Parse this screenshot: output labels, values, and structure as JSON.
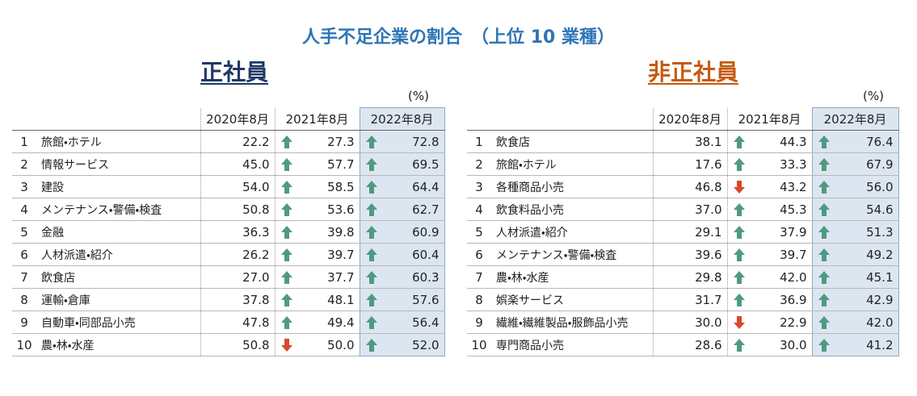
{
  "title": "人手不足企業の割合　（上位 10 業種）",
  "tables": [
    {
      "heading": "正社員",
      "unit": "(%)",
      "columns": [
        "2020年8月",
        "2021年8月",
        "2022年8月"
      ],
      "rows": [
        [
          "1",
          "旅館・ホテル",
          "22.2",
          "27.3",
          "72.8"
        ],
        [
          "2",
          "情報サービス",
          "45.0",
          "57.7",
          "69.5"
        ],
        [
          "3",
          "建設",
          "54.0",
          "58.5",
          "64.4"
        ],
        [
          "4",
          "メンテナンス・警備・検査",
          "50.8",
          "53.6",
          "62.7"
        ],
        [
          "5",
          "金融",
          "36.3",
          "39.8",
          "60.9"
        ],
        [
          "6",
          "人材派遣・紹介",
          "26.2",
          "39.7",
          "60.4"
        ],
        [
          "7",
          "飲食店",
          "27.0",
          "37.7",
          "60.3"
        ],
        [
          "8",
          "運輸・倉庫",
          "37.8",
          "48.1",
          "57.6"
        ],
        [
          "9",
          "自動車・同部品小売",
          "47.8",
          "49.4",
          "56.4"
        ],
        [
          "10",
          "農・林・水産",
          "50.8",
          "50.0",
          "52.0"
        ]
      ]
    },
    {
      "heading": "非正社員",
      "unit": "(%)",
      "columns": [
        "2020年8月",
        "2021年8月",
        "2022年8月"
      ],
      "rows": [
        [
          "1",
          "飲食店",
          "38.1",
          "44.3",
          "76.4"
        ],
        [
          "2",
          "旅館・ホテル",
          "17.6",
          "33.3",
          "67.9"
        ],
        [
          "3",
          "各種商品小売",
          "46.8",
          "43.2",
          "56.0"
        ],
        [
          "4",
          "飲食料品小売",
          "37.0",
          "45.3",
          "54.6"
        ],
        [
          "5",
          "人材派遣・紹介",
          "29.1",
          "37.9",
          "51.3"
        ],
        [
          "6",
          "メンテナンス・警備・検査",
          "39.6",
          "39.7",
          "49.2"
        ],
        [
          "7",
          "農・林・水産",
          "29.8",
          "42.0",
          "45.1"
        ],
        [
          "8",
          "娯楽サービス",
          "31.7",
          "36.9",
          "42.9"
        ],
        [
          "9",
          "繊維・繊維製品・服飾品小売",
          "30.0",
          "22.9",
          "42.0"
        ],
        [
          "10",
          "専門商品小売",
          "28.6",
          "30.0",
          "41.2"
        ]
      ]
    }
  ]
}
